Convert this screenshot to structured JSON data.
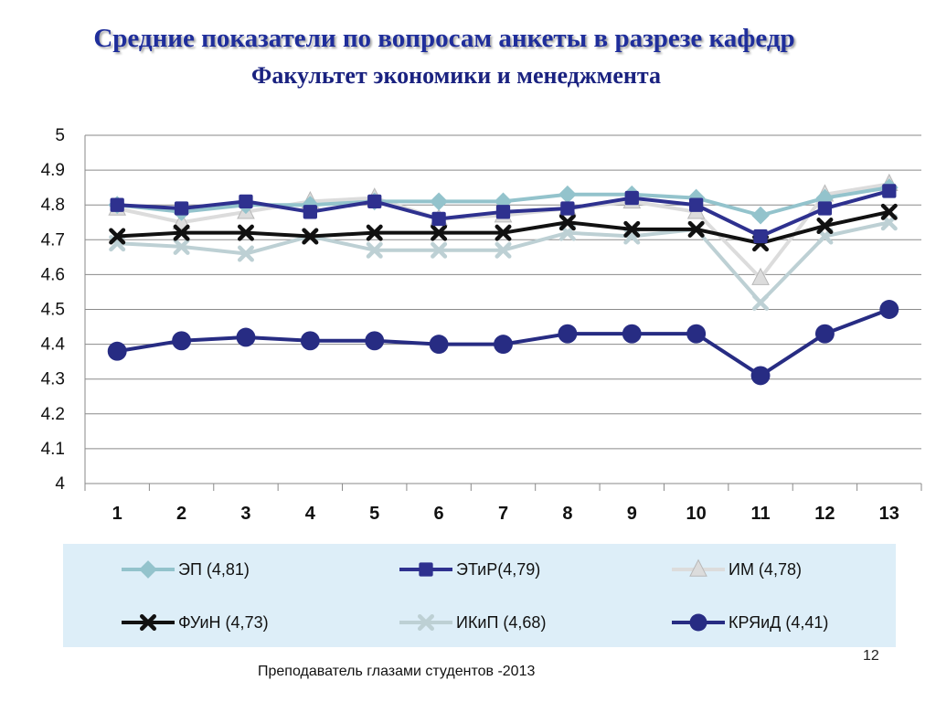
{
  "title": "Средние показатели по вопросам  анкеты  в разрезе кафедр",
  "subtitle": "Факультет экономики и менеджмента",
  "page_number": "12",
  "footer": "Преподаватель глазами студентов -2013",
  "chart_data": {
    "type": "line",
    "x": [
      1,
      2,
      3,
      4,
      5,
      6,
      7,
      8,
      9,
      10,
      11,
      12,
      13
    ],
    "x_tick_labels": [
      "1",
      "2",
      "3",
      "4",
      "5",
      "6",
      "7",
      "8",
      "9",
      "10",
      "11",
      "12",
      "13"
    ],
    "ylim": [
      4,
      5
    ],
    "y_tick_labels": [
      "4",
      "4.1",
      "4.2",
      "4.3",
      "4.4",
      "4.5",
      "4.6",
      "4.7",
      "4.8",
      "4.9",
      "5"
    ],
    "grid": "horizontal",
    "legend_position": "bottom",
    "series": [
      {
        "name": "ЭП (4,81)",
        "color": "#93c3cc",
        "marker": "diamond",
        "values": [
          4.8,
          4.78,
          4.8,
          4.8,
          4.81,
          4.81,
          4.81,
          4.83,
          4.83,
          4.82,
          4.77,
          4.82,
          4.85
        ]
      },
      {
        "name": "ЭТиР(4,79)",
        "color": "#2e318f",
        "marker": "square",
        "values": [
          4.8,
          4.79,
          4.81,
          4.78,
          4.81,
          4.76,
          4.78,
          4.79,
          4.82,
          4.8,
          4.71,
          4.79,
          4.84
        ]
      },
      {
        "name": "ИМ (4,78)",
        "color": "#dcdcdc",
        "marker": "triangle",
        "values": [
          4.79,
          4.75,
          4.78,
          4.81,
          4.82,
          4.76,
          4.77,
          4.79,
          4.81,
          4.78,
          4.59,
          4.83,
          4.86
        ]
      },
      {
        "name": "ФУиН (4,73)",
        "color": "#111111",
        "marker": "x",
        "values": [
          4.71,
          4.72,
          4.72,
          4.71,
          4.72,
          4.72,
          4.72,
          4.75,
          4.73,
          4.73,
          4.69,
          4.74,
          4.78
        ]
      },
      {
        "name": "ИКиП (4,68)",
        "color": "#bdd0d4",
        "marker": "x",
        "values": [
          4.69,
          4.68,
          4.66,
          4.71,
          4.67,
          4.67,
          4.67,
          4.72,
          4.71,
          4.73,
          4.52,
          4.71,
          4.75
        ]
      },
      {
        "name": "КРЯиД (4,41)",
        "color": "#272c83",
        "marker": "circle",
        "values": [
          4.38,
          4.41,
          4.42,
          4.41,
          4.41,
          4.4,
          4.4,
          4.43,
          4.43,
          4.43,
          4.31,
          4.43,
          4.5
        ]
      }
    ]
  }
}
